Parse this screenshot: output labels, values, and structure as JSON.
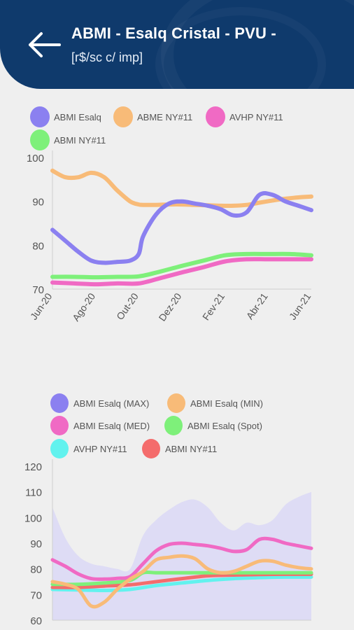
{
  "header": {
    "title": "ABMI - Esalq Cristal - PVU -",
    "subtitle": "[r$/sc c/ imp]",
    "background": "#0f3a6c"
  },
  "chart_data": [
    {
      "type": "line",
      "legend": [
        {
          "name": "ABMI Esalq",
          "color": "#8b80f0"
        },
        {
          "name": "ABME NY#11",
          "color": "#f8bb78"
        },
        {
          "name": "AVHP NY#11",
          "color": "#f06ac4"
        },
        {
          "name": "ABMI NY#11",
          "color": "#7ef07a"
        }
      ],
      "x_ticks": [
        "Jun-20",
        "Ago-20",
        "Out-20",
        "Dez-20",
        "Fev-21",
        "Abr-21",
        "Jun-21"
      ],
      "ylim": [
        70,
        100
      ],
      "y_ticks": [
        70,
        80,
        90,
        100
      ],
      "series": [
        {
          "name": "ABMI Esalq",
          "x": [
            0,
            0.3,
            0.6,
            0.9,
            1.2,
            1.5,
            1.8,
            2.0,
            2.1,
            2.4,
            2.7,
            3.0,
            3.3,
            3.6,
            3.9,
            4.2,
            4.5,
            4.8,
            5.1,
            5.4,
            5.7,
            6.0
          ],
          "y": [
            83.5,
            81,
            78.5,
            76.5,
            76,
            76.2,
            76.5,
            78,
            82,
            87,
            89.5,
            90,
            89.5,
            89,
            88.2,
            86.8,
            87.5,
            91.5,
            91.5,
            90,
            89,
            88
          ]
        },
        {
          "name": "ABME NY#11",
          "x": [
            0,
            0.3,
            0.6,
            0.9,
            1.2,
            1.5,
            1.8,
            2.0,
            2.1,
            2.4,
            2.7,
            3.0,
            3.3,
            3.6,
            3.9,
            4.2,
            4.5,
            4.8,
            5.1,
            5.4,
            5.7,
            6.0
          ],
          "y": [
            97,
            95.5,
            95.5,
            96.5,
            95.5,
            92.5,
            90,
            89.3,
            89.2,
            89.2,
            89.3,
            89.3,
            89.2,
            89.1,
            89,
            89,
            89.2,
            89.7,
            90.2,
            90.6,
            90.9,
            91.1
          ]
        },
        {
          "name": "AVHP NY#11",
          "x": [
            0,
            0.5,
            1,
            1.5,
            2,
            2.5,
            3,
            3.5,
            4,
            4.5,
            5,
            5.5,
            6
          ],
          "y": [
            71.5,
            71.3,
            71.1,
            71.3,
            71.3,
            72.5,
            73.8,
            75,
            76.3,
            76.8,
            76.8,
            76.8,
            76.8
          ]
        },
        {
          "name": "ABMI NY#11",
          "x": [
            0,
            0.5,
            1,
            1.5,
            2,
            2.5,
            3,
            3.5,
            4,
            4.5,
            5,
            5.5,
            6
          ],
          "y": [
            72.8,
            72.8,
            72.7,
            72.8,
            72.9,
            74,
            75.3,
            76.5,
            77.7,
            78,
            78,
            78,
            77.7
          ]
        }
      ]
    },
    {
      "type": "line",
      "legend": [
        {
          "name": "ABMI Esalq (MAX)",
          "color": "#8b80f0"
        },
        {
          "name": "ABMI Esalq (MIN)",
          "color": "#f8bb78"
        },
        {
          "name": "ABMI Esalq (MED)",
          "color": "#f06ac4"
        },
        {
          "name": "ABMI Esalq (Spot)",
          "color": "#7ef07a"
        },
        {
          "name": "AVHP NY#11",
          "color": "#62f2ee"
        },
        {
          "name": "ABMI NY#11",
          "color": "#f46c6c"
        }
      ],
      "ylim": [
        60,
        120
      ],
      "y_ticks": [
        60,
        70,
        80,
        90,
        100,
        110,
        120
      ],
      "series": [
        {
          "name": "ABMI Esalq (MAX)",
          "x": [
            0,
            0.3,
            0.6,
            0.9,
            1.2,
            1.5,
            1.8,
            2.1,
            2.4,
            2.7,
            3.0,
            3.3,
            3.6,
            3.9,
            4.2,
            4.5,
            4.8,
            5.1,
            5.4,
            5.7,
            6.0
          ],
          "y": [
            104,
            92,
            85,
            82,
            81,
            80,
            80,
            93,
            99,
            103,
            106,
            107,
            104,
            98,
            95,
            98,
            97,
            99,
            105,
            108,
            110
          ]
        },
        {
          "name": "ABMI Esalq (MIN)",
          "x": [
            0,
            0.3,
            0.6,
            0.9,
            1.2,
            1.5,
            1.8,
            2.1,
            2.4,
            2.7,
            3.0,
            3.3,
            3.6,
            3.9,
            4.2,
            4.5,
            4.8,
            5.1,
            5.4,
            5.7,
            6.0
          ],
          "y": [
            75,
            74,
            72,
            65.5,
            67,
            72,
            76,
            79,
            83.5,
            84.5,
            85,
            84,
            80,
            78.5,
            79,
            81,
            83,
            83,
            81.5,
            80.5,
            80
          ]
        },
        {
          "name": "ABMI Esalq (MED)",
          "x": [
            0,
            0.3,
            0.6,
            0.9,
            1.2,
            1.5,
            1.8,
            2.1,
            2.4,
            2.7,
            3.0,
            3.3,
            3.6,
            3.9,
            4.2,
            4.5,
            4.8,
            5.1,
            5.4,
            5.7,
            6.0
          ],
          "y": [
            83.5,
            81,
            78,
            76.2,
            76,
            76.3,
            77,
            82,
            87,
            89.5,
            90,
            89.5,
            89,
            88,
            86.8,
            87.5,
            91.5,
            91.5,
            90,
            89,
            88
          ]
        },
        {
          "name": "ABMI Esalq (Spot)",
          "x": [
            0,
            0.6,
            1.2,
            1.8,
            2.1,
            2.4,
            3.0,
            3.6,
            4.2,
            4.8,
            5.4,
            6.0
          ],
          "y": [
            74,
            74,
            74.5,
            75.5,
            78.5,
            78.5,
            78.5,
            78.5,
            78.5,
            78.5,
            78.5,
            78.5
          ]
        },
        {
          "name": "AVHP NY#11",
          "x": [
            0,
            0.6,
            1.2,
            1.8,
            2.4,
            3.0,
            3.6,
            4.2,
            4.8,
            5.4,
            6.0
          ],
          "y": [
            72,
            71.8,
            71.6,
            72,
            73.5,
            74.5,
            75.5,
            76.2,
            76.6,
            76.8,
            76.8
          ]
        },
        {
          "name": "ABMI NY#11",
          "x": [
            0,
            0.6,
            1.2,
            1.8,
            2.4,
            3.0,
            3.6,
            4.2,
            4.8,
            5.4,
            6.0
          ],
          "y": [
            72.8,
            72.8,
            73.3,
            73.8,
            75,
            76.2,
            77.3,
            77.6,
            77.8,
            77.9,
            77.9
          ]
        }
      ]
    }
  ]
}
